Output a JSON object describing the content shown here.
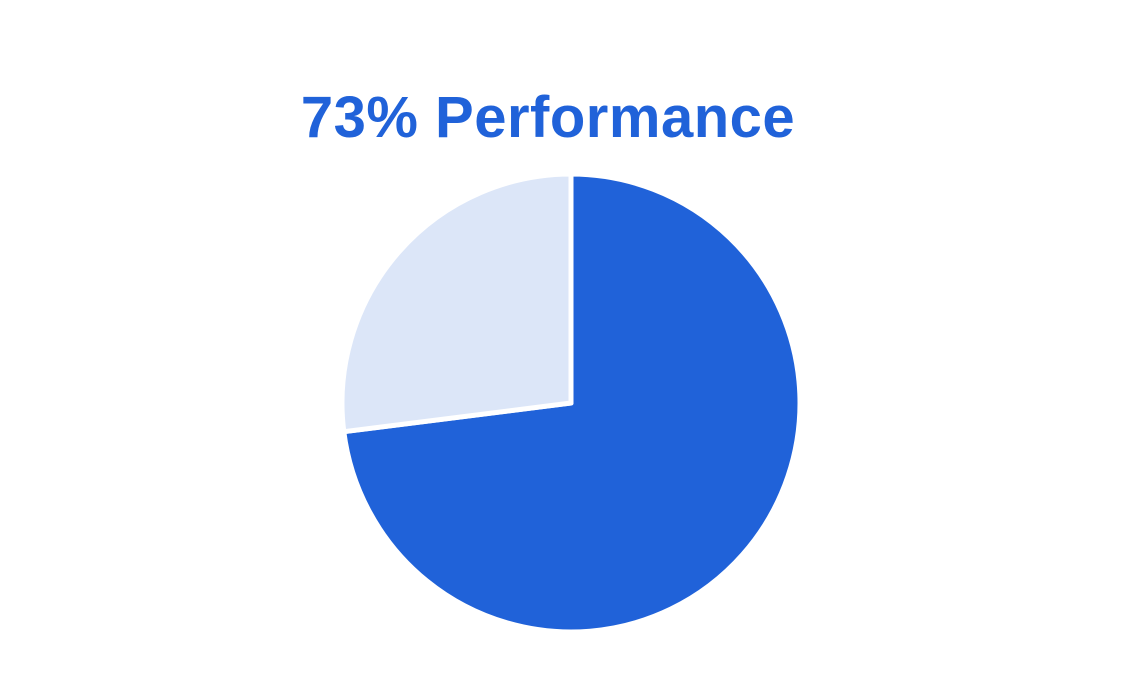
{
  "chart_data": {
    "type": "pie",
    "title": "73% Performance",
    "slices": [
      {
        "value": 73,
        "color": "#2062D9"
      },
      {
        "value": 27,
        "color": "#DCE6F8"
      }
    ],
    "start_angle_deg": 0,
    "direction": "clockwise"
  },
  "colors": {
    "title": "#2062D9",
    "background": "#FFFFFF",
    "separator": "#FFFFFF"
  }
}
